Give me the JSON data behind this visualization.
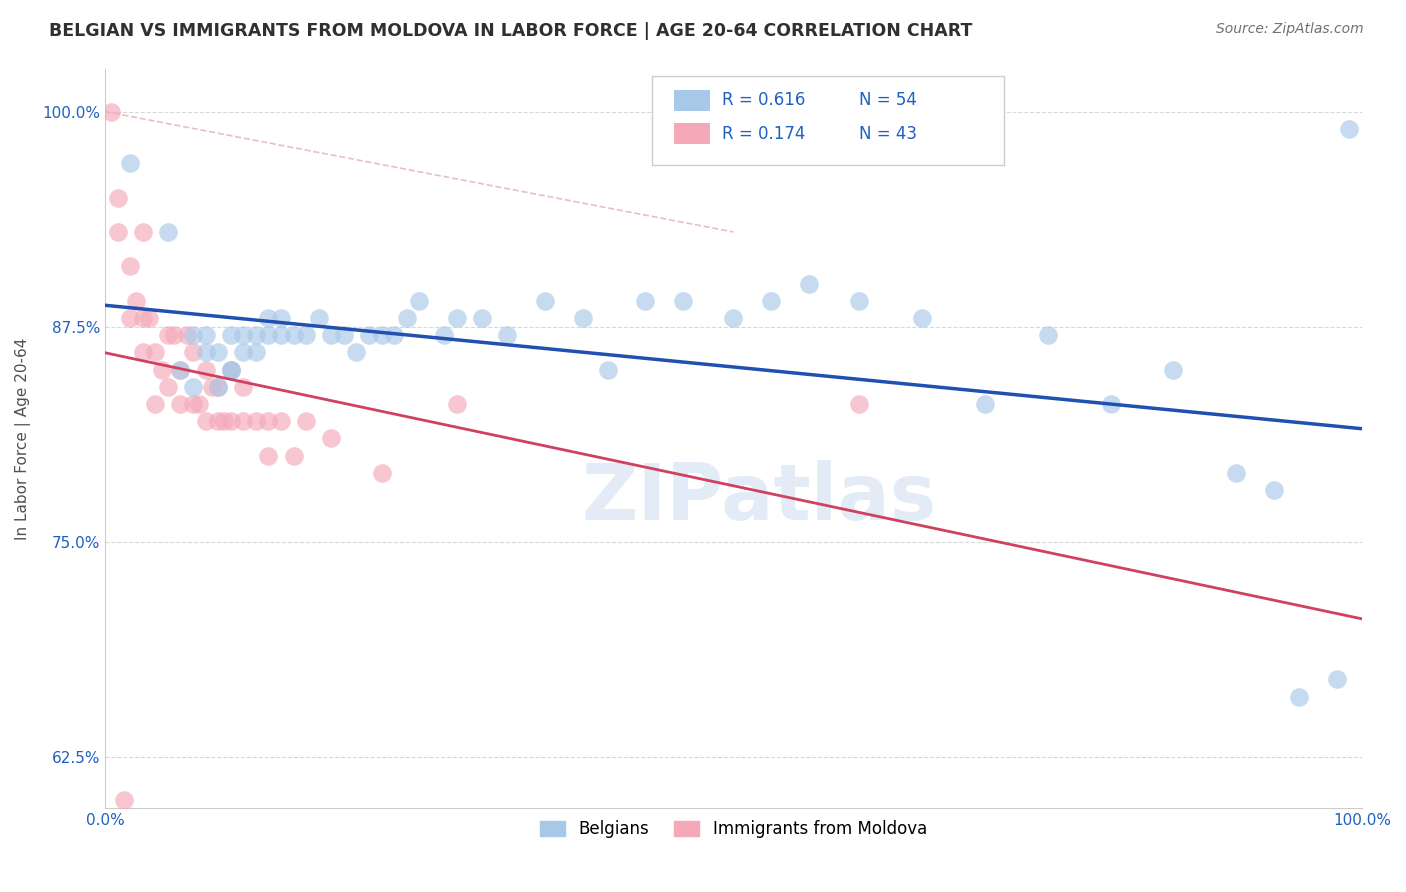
{
  "title": "BELGIAN VS IMMIGRANTS FROM MOLDOVA IN LABOR FORCE | AGE 20-64 CORRELATION CHART",
  "source": "Source: ZipAtlas.com",
  "ylabel": "In Labor Force | Age 20-64",
  "xlim": [
    0.0,
    1.0
  ],
  "ylim": [
    0.595,
    1.025
  ],
  "yticks": [
    0.625,
    0.75,
    0.875,
    1.0
  ],
  "ytick_labels": [
    "62.5%",
    "75.0%",
    "87.5%",
    "100.0%"
  ],
  "xticks": [
    0.0,
    0.2,
    0.4,
    0.6,
    0.8,
    1.0
  ],
  "xtick_labels": [
    "0.0%",
    "",
    "",
    "",
    "",
    "100.0%"
  ],
  "blue_R": 0.616,
  "blue_N": 54,
  "pink_R": 0.174,
  "pink_N": 43,
  "blue_color": "#a8c8e8",
  "pink_color": "#f4a8b8",
  "blue_line_color": "#2050b0",
  "pink_line_color": "#d04060",
  "dashed_line_color": "#e0b0b8",
  "grid_color": "#d8d8d8",
  "title_color": "#303030",
  "source_color": "#707070",
  "watermark": "ZIPatlas",
  "blue_scatter_x": [
    0.02,
    0.05,
    0.06,
    0.07,
    0.07,
    0.08,
    0.08,
    0.09,
    0.09,
    0.1,
    0.1,
    0.1,
    0.11,
    0.11,
    0.12,
    0.12,
    0.13,
    0.13,
    0.14,
    0.14,
    0.15,
    0.16,
    0.17,
    0.18,
    0.19,
    0.2,
    0.21,
    0.22,
    0.23,
    0.24,
    0.25,
    0.27,
    0.28,
    0.3,
    0.32,
    0.35,
    0.38,
    0.4,
    0.43,
    0.46,
    0.5,
    0.53,
    0.56,
    0.6,
    0.65,
    0.7,
    0.75,
    0.8,
    0.85,
    0.9,
    0.93,
    0.95,
    0.98,
    0.99
  ],
  "blue_scatter_y": [
    0.97,
    0.93,
    0.85,
    0.87,
    0.84,
    0.87,
    0.86,
    0.84,
    0.86,
    0.85,
    0.87,
    0.85,
    0.86,
    0.87,
    0.86,
    0.87,
    0.87,
    0.88,
    0.87,
    0.88,
    0.87,
    0.87,
    0.88,
    0.87,
    0.87,
    0.86,
    0.87,
    0.87,
    0.87,
    0.88,
    0.89,
    0.87,
    0.88,
    0.88,
    0.87,
    0.89,
    0.88,
    0.85,
    0.89,
    0.89,
    0.88,
    0.89,
    0.9,
    0.89,
    0.88,
    0.83,
    0.87,
    0.83,
    0.85,
    0.79,
    0.78,
    0.66,
    0.67,
    0.99
  ],
  "pink_scatter_x": [
    0.005,
    0.01,
    0.01,
    0.015,
    0.02,
    0.02,
    0.025,
    0.03,
    0.03,
    0.03,
    0.035,
    0.04,
    0.04,
    0.045,
    0.05,
    0.05,
    0.055,
    0.06,
    0.06,
    0.065,
    0.07,
    0.07,
    0.075,
    0.08,
    0.08,
    0.085,
    0.09,
    0.09,
    0.095,
    0.1,
    0.1,
    0.11,
    0.11,
    0.12,
    0.13,
    0.13,
    0.14,
    0.15,
    0.16,
    0.18,
    0.22,
    0.28,
    0.6
  ],
  "pink_scatter_y": [
    1.0,
    0.93,
    0.95,
    0.6,
    0.88,
    0.91,
    0.89,
    0.86,
    0.88,
    0.93,
    0.88,
    0.83,
    0.86,
    0.85,
    0.84,
    0.87,
    0.87,
    0.83,
    0.85,
    0.87,
    0.83,
    0.86,
    0.83,
    0.82,
    0.85,
    0.84,
    0.82,
    0.84,
    0.82,
    0.82,
    0.85,
    0.82,
    0.84,
    0.82,
    0.8,
    0.82,
    0.82,
    0.8,
    0.82,
    0.81,
    0.79,
    0.83,
    0.83
  ]
}
